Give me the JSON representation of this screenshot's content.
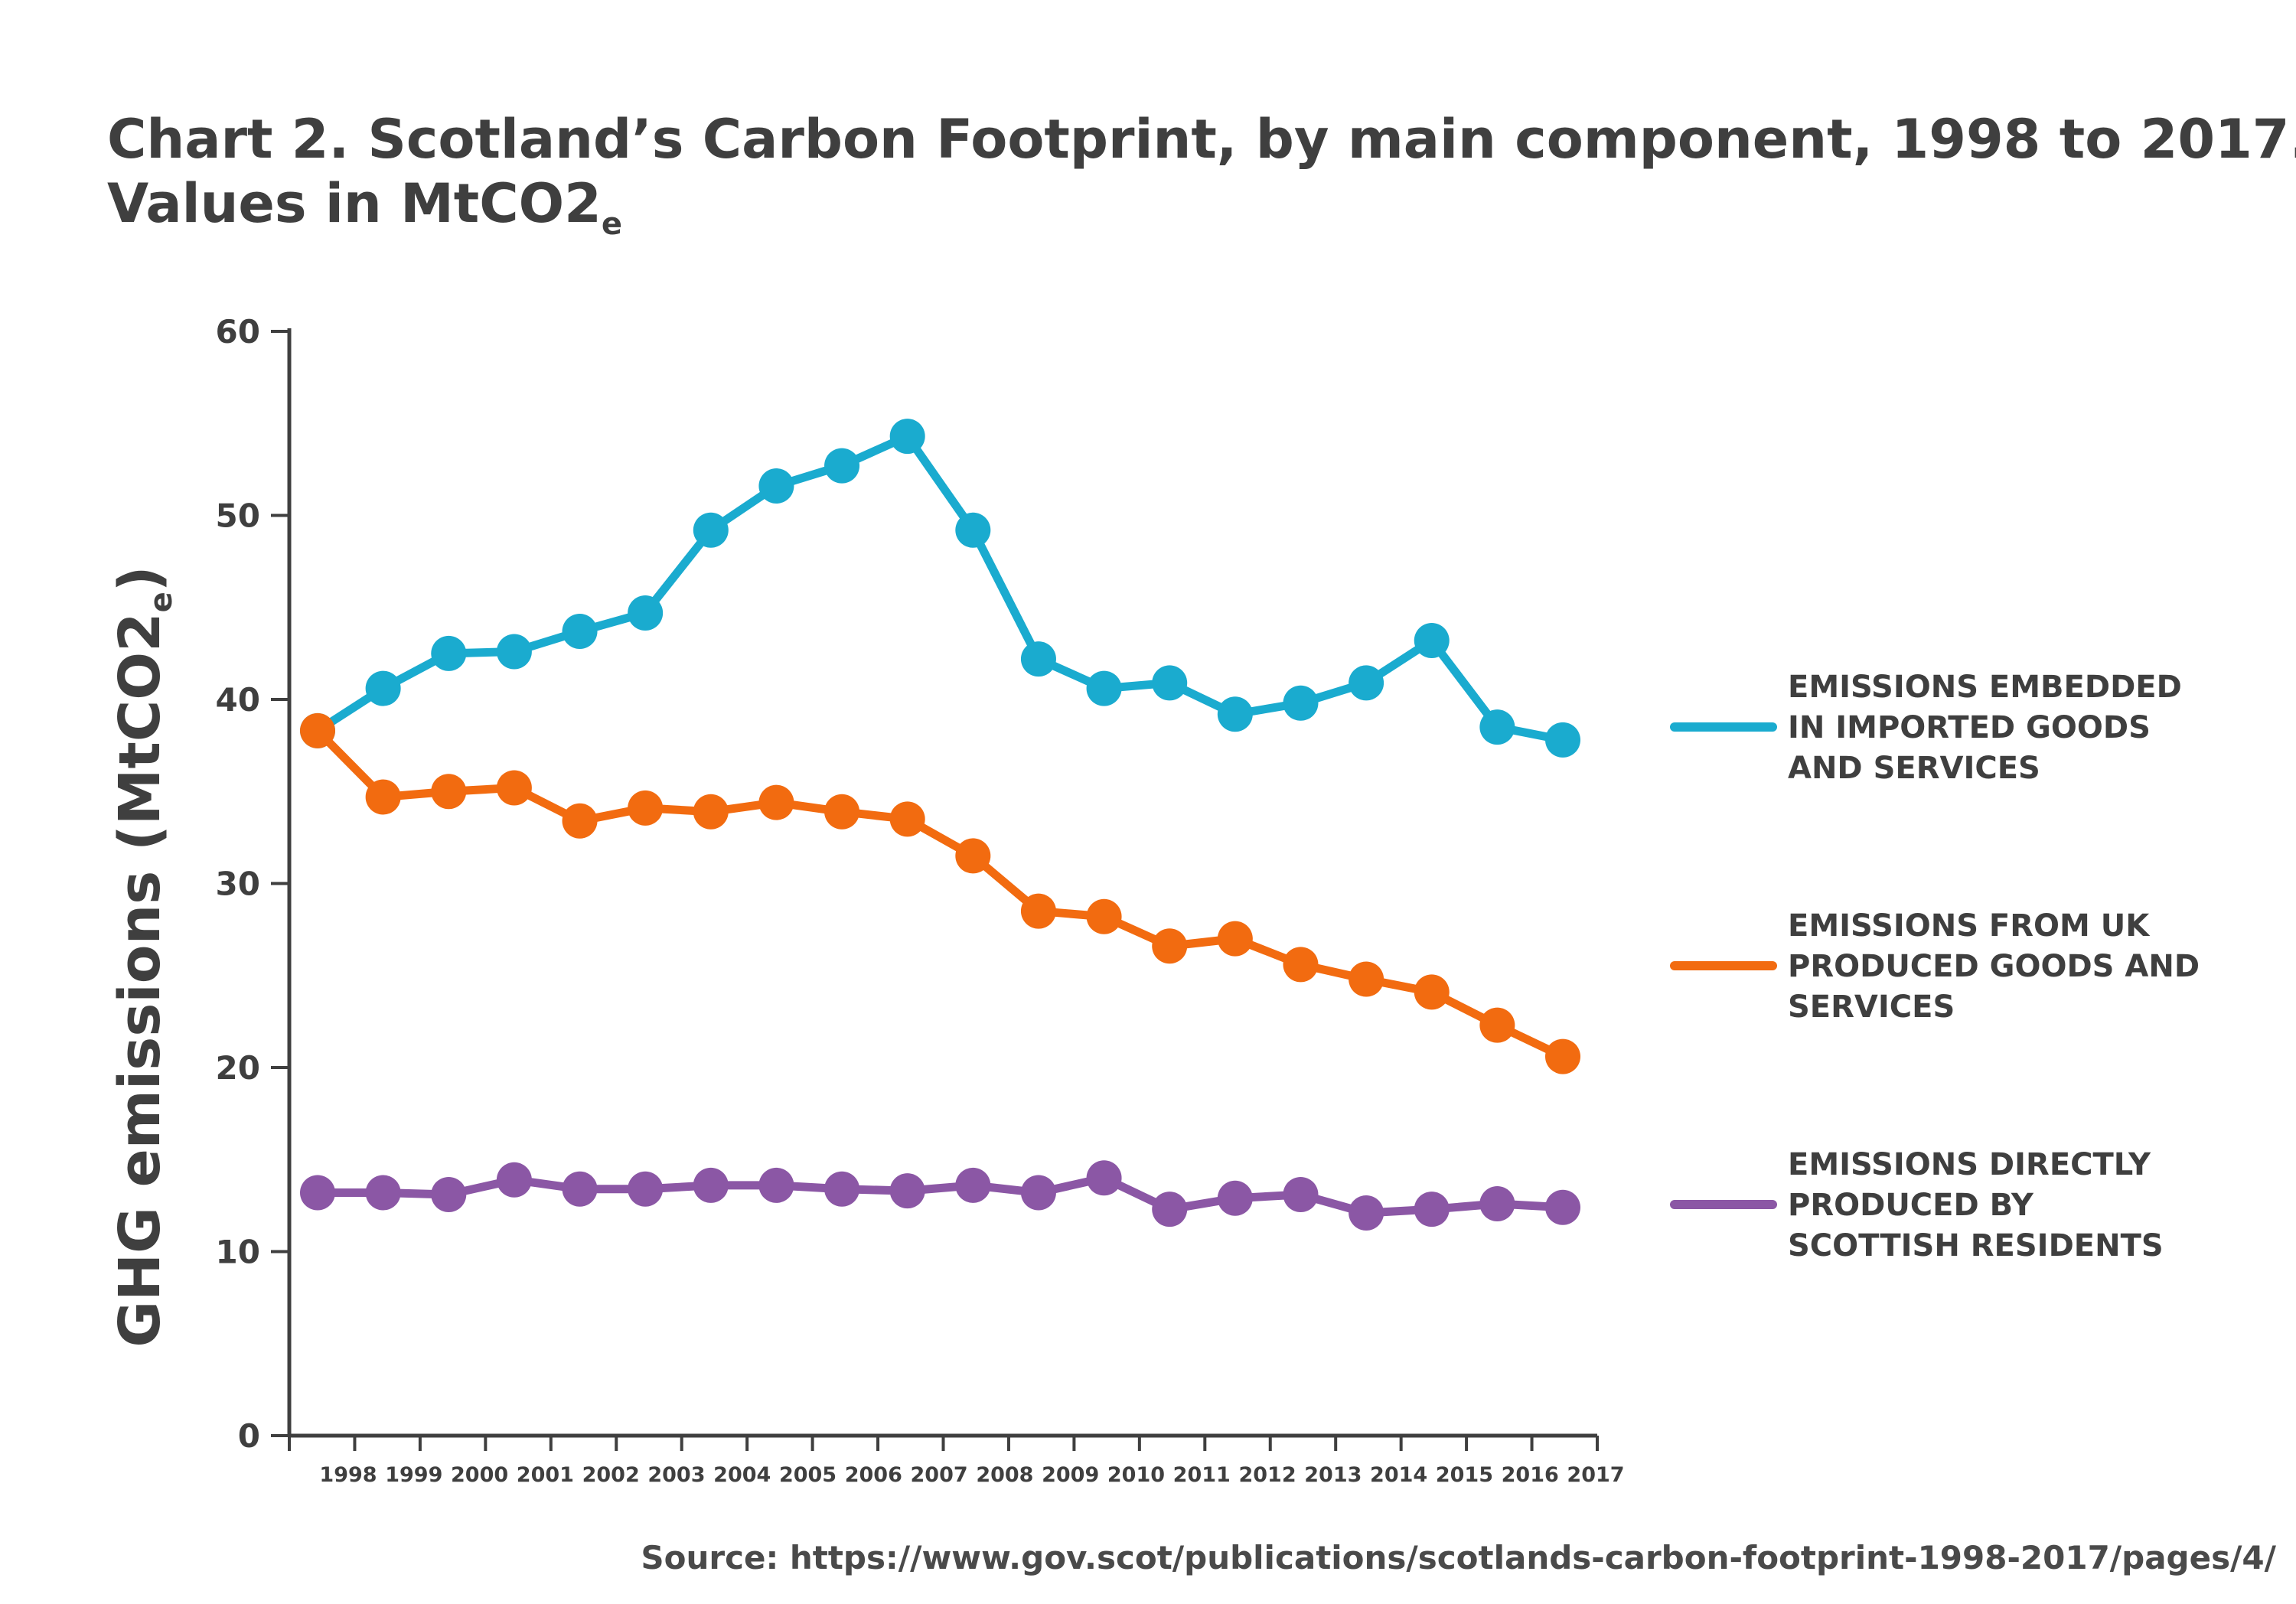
{
  "title_line1": "Chart 2. Scotland’s Carbon Footprint, by main component, 1998 to 2017.",
  "title_line2": "Values in MtCO2",
  "title_line2_subscript": "e",
  "source": "Source:  https://www.gov.scot/publications/scotlands-carbon-footprint-1998-2017/pages/4/",
  "chart_data": {
    "type": "line",
    "ylabel": "GHG emissions (MtCO2",
    "ylabel_subscript": "e",
    "ylabel_close": ")",
    "xlabel": "",
    "ylim": [
      0,
      60
    ],
    "yticks": [
      0,
      10,
      20,
      30,
      40,
      50,
      60
    ],
    "grid": false,
    "legend_position": "right",
    "categories": [
      "1998",
      "1999",
      "2000",
      "2001",
      "2002",
      "2003",
      "2004",
      "2005",
      "2006",
      "2007",
      "2008",
      "2009",
      "2010",
      "2011",
      "2012",
      "2013",
      "2014",
      "2015",
      "2016",
      "2017"
    ],
    "series": [
      {
        "legend_lines": [
          "EMISSIONS EMBEDDED",
          "IN IMPORTED GOODS",
          "AND SERVICES"
        ],
        "color": "#1aabcf",
        "values": [
          38.3,
          40.6,
          42.5,
          42.6,
          43.7,
          44.7,
          49.2,
          51.6,
          52.7,
          54.3,
          49.2,
          42.2,
          40.6,
          40.9,
          39.2,
          39.8,
          40.9,
          43.2,
          38.5,
          37.8
        ]
      },
      {
        "legend_lines": [
          "EMISSIONS FROM UK",
          "PRODUCED GOODS AND",
          "SERVICES"
        ],
        "color": "#f26b10",
        "values": [
          38.3,
          34.7,
          35.0,
          35.2,
          33.4,
          34.1,
          33.9,
          34.4,
          33.9,
          33.5,
          31.5,
          28.5,
          28.2,
          26.6,
          27.0,
          25.6,
          24.8,
          24.1,
          22.3,
          20.6
        ]
      },
      {
        "legend_lines": [
          "EMISSIONS DIRECTLY",
          "PRODUCED BY",
          "SCOTTISH RESIDENTS"
        ],
        "color": "#8b57a5",
        "values": [
          13.2,
          13.2,
          13.1,
          13.9,
          13.4,
          13.4,
          13.6,
          13.6,
          13.4,
          13.3,
          13.6,
          13.2,
          14.0,
          12.3,
          12.9,
          13.1,
          12.1,
          12.3,
          12.6,
          12.4
        ]
      }
    ]
  }
}
